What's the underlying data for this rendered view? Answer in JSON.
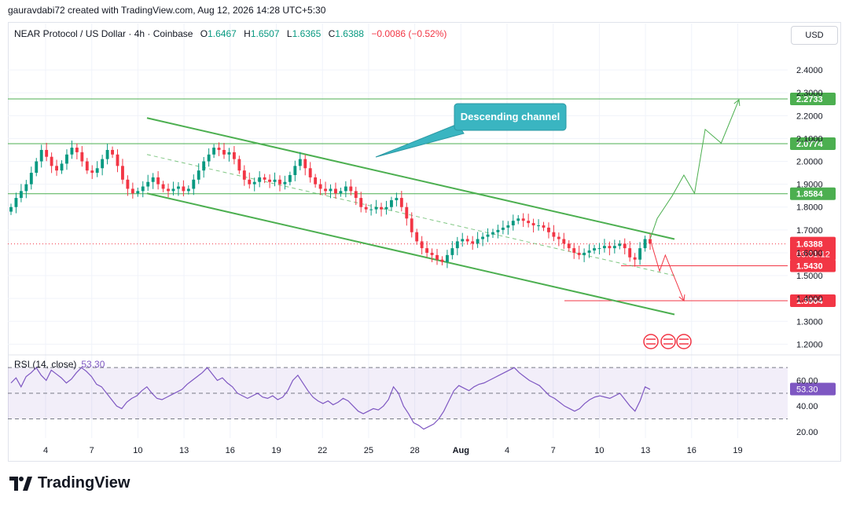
{
  "attribution": "gauravdabi72 created with TradingView.com, Aug 12, 2026 14:28 UTC+5:30",
  "brand": "TradingView",
  "currency_button": "USD",
  "legend": {
    "symbol": "NEAR Protocol / US Dollar · 4h · Coinbase",
    "o_label": "O",
    "o_value": "1.6467",
    "h_label": "H",
    "h_value": "1.6507",
    "l_label": "L",
    "l_value": "1.6365",
    "c_label": "C",
    "c_value": "1.6388",
    "change": "−0.0086 (−0.52%)"
  },
  "colors": {
    "up": "#089981",
    "down": "#f23645",
    "channel": "#4caf50",
    "rsi": "#7e57c2",
    "callout": "#3ab5c1"
  },
  "chart_data": {
    "type": "candlestick",
    "timeframe": "4h",
    "x_ticks": [
      "4",
      "7",
      "10",
      "13",
      "16",
      "19",
      "22",
      "25",
      "28",
      "Aug",
      "4",
      "7",
      "10",
      "13",
      "16",
      "19"
    ],
    "y_ticks": [
      "2.4000",
      "2.3000",
      "2.2000",
      "2.1000",
      "2.0000",
      "1.9000",
      "1.8000",
      "1.7000",
      "1.6000",
      "1.5000",
      "1.4000",
      "1.3000",
      "1.2000"
    ],
    "ylim": [
      1.16,
      2.5
    ],
    "last_price": {
      "value": "1.6388",
      "countdown": "03:01:12"
    },
    "horizontal_levels": [
      {
        "value": 2.2733,
        "label": "2.2733",
        "color": "#4caf50"
      },
      {
        "value": 2.0774,
        "label": "2.0774",
        "color": "#4caf50"
      },
      {
        "value": 1.8584,
        "label": "1.8584",
        "color": "#4caf50"
      },
      {
        "value": 1.543,
        "label": "1.5430",
        "color": "#f23645"
      },
      {
        "value": 1.3904,
        "label": "1.3904",
        "color": "#f23645"
      }
    ],
    "annotation": "Descending channel",
    "channel": {
      "upper": [
        [
          2.19,
          0
        ],
        [
          1.66,
          1
        ]
      ],
      "lower": [
        [
          1.86,
          0
        ],
        [
          1.33,
          1
        ]
      ],
      "mid": [
        [
          2.03,
          0
        ],
        [
          1.5,
          1
        ]
      ]
    },
    "close_series": [
      1.8,
      1.84,
      1.87,
      1.9,
      1.95,
      2.0,
      2.05,
      2.02,
      1.98,
      1.96,
      1.99,
      2.03,
      2.06,
      2.04,
      2.0,
      1.96,
      1.95,
      1.97,
      2.01,
      2.05,
      2.03,
      1.98,
      1.92,
      1.88,
      1.86,
      1.87,
      1.89,
      1.91,
      1.93,
      1.9,
      1.88,
      1.87,
      1.88,
      1.89,
      1.87,
      1.88,
      1.92,
      1.96,
      2.0,
      2.03,
      2.06,
      2.05,
      2.03,
      2.04,
      2.01,
      1.96,
      1.92,
      1.9,
      1.91,
      1.93,
      1.92,
      1.91,
      1.92,
      1.9,
      1.91,
      1.94,
      1.98,
      2.01,
      1.97,
      1.93,
      1.9,
      1.88,
      1.87,
      1.88,
      1.86,
      1.87,
      1.89,
      1.87,
      1.84,
      1.8,
      1.79,
      1.79,
      1.8,
      1.79,
      1.8,
      1.83,
      1.84,
      1.8,
      1.75,
      1.69,
      1.65,
      1.62,
      1.6,
      1.59,
      1.57,
      1.56,
      1.59,
      1.62,
      1.65,
      1.66,
      1.65,
      1.64,
      1.66,
      1.67,
      1.68,
      1.69,
      1.7,
      1.71,
      1.72,
      1.74,
      1.75,
      1.74,
      1.73,
      1.72,
      1.72,
      1.71,
      1.69,
      1.67,
      1.66,
      1.64,
      1.62,
      1.6,
      1.59,
      1.6,
      1.61,
      1.62,
      1.62,
      1.63,
      1.62,
      1.63,
      1.64,
      1.62,
      1.58,
      1.57,
      1.62,
      1.66,
      1.64
    ],
    "projection_up": [
      [
        1.66,
        0.0
      ],
      [
        1.75,
        0.08
      ],
      [
        1.85,
        0.25
      ],
      [
        1.94,
        0.38
      ],
      [
        1.86,
        0.5
      ],
      [
        2.14,
        0.62
      ],
      [
        2.08,
        0.8
      ],
      [
        2.27,
        1.0
      ]
    ],
    "projection_down": [
      [
        1.66,
        0.0
      ],
      [
        1.52,
        0.28
      ],
      [
        1.59,
        0.45
      ],
      [
        1.39,
        1.0
      ]
    ],
    "rsi": {
      "label": "RSI (14, close)",
      "value": "53.30",
      "y_ticks": [
        "60.00",
        "40.00",
        "20.00"
      ],
      "bands": [
        70,
        50,
        30
      ],
      "ylim": [
        15,
        75
      ],
      "values": [
        58,
        62,
        55,
        63,
        66,
        70,
        64,
        60,
        68,
        65,
        62,
        58,
        61,
        66,
        70,
        67,
        63,
        57,
        55,
        50,
        45,
        40,
        38,
        43,
        46,
        48,
        52,
        55,
        50,
        46,
        45,
        47,
        49,
        51,
        53,
        57,
        60,
        63,
        66,
        70,
        65,
        60,
        62,
        58,
        55,
        50,
        48,
        46,
        48,
        50,
        47,
        46,
        48,
        45,
        47,
        52,
        60,
        64,
        58,
        52,
        47,
        44,
        42,
        44,
        41,
        43,
        46,
        44,
        40,
        36,
        34,
        36,
        38,
        37,
        40,
        45,
        55,
        50,
        40,
        34,
        27,
        25,
        22,
        24,
        26,
        30,
        36,
        44,
        52,
        56,
        54,
        52,
        55,
        57,
        58,
        60,
        62,
        64,
        66,
        68,
        70,
        66,
        63,
        60,
        58,
        56,
        52,
        48,
        46,
        43,
        40,
        38,
        36,
        38,
        42,
        45,
        47,
        48,
        47,
        46,
        48,
        50,
        45,
        40,
        36,
        44,
        55,
        53
      ]
    }
  }
}
